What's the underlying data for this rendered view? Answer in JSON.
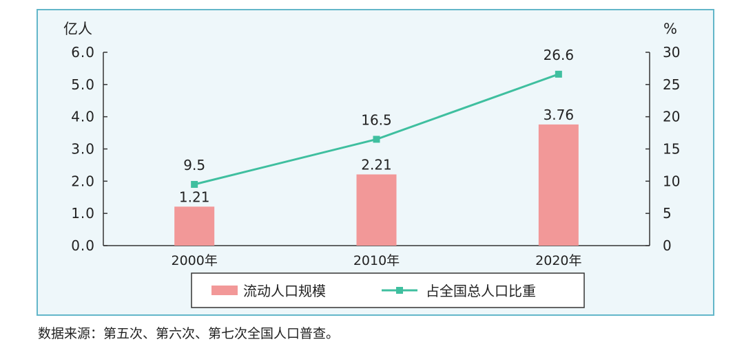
{
  "chart_data": {
    "type": "bar",
    "categories": [
      "2000年",
      "2010年",
      "2020年"
    ],
    "series": [
      {
        "name": "流动人口规模",
        "type": "bar",
        "axis": "left",
        "values": [
          1.21,
          2.21,
          3.76
        ],
        "value_labels": [
          "1.21",
          "2.21",
          "3.76"
        ],
        "color": "#f29898"
      },
      {
        "name": "占全国总人口比重",
        "type": "line",
        "axis": "right",
        "values": [
          9.5,
          16.5,
          26.6
        ],
        "value_labels": [
          "9.5",
          "16.5",
          "26.6"
        ],
        "color": "#3fbf9f"
      }
    ],
    "y_left": {
      "unit": "亿人",
      "ylim": [
        0,
        6
      ],
      "ticks": [
        "0.0",
        "1.0",
        "2.0",
        "3.0",
        "4.0",
        "5.0",
        "6.0"
      ]
    },
    "y_right": {
      "unit": "%",
      "ylim": [
        0,
        30
      ],
      "ticks": [
        "0",
        "5",
        "10",
        "15",
        "20",
        "25",
        "30"
      ]
    },
    "legend_position": "bottom-center",
    "grid": false
  },
  "source_note": "数据来源：第五次、第六次、第七次全国人口普查。",
  "colors": {
    "panel_bg": "#eef7fa",
    "panel_border": "#62b6c9",
    "bar": "#f29898",
    "line": "#3fbf9f",
    "axis": "#333333"
  }
}
